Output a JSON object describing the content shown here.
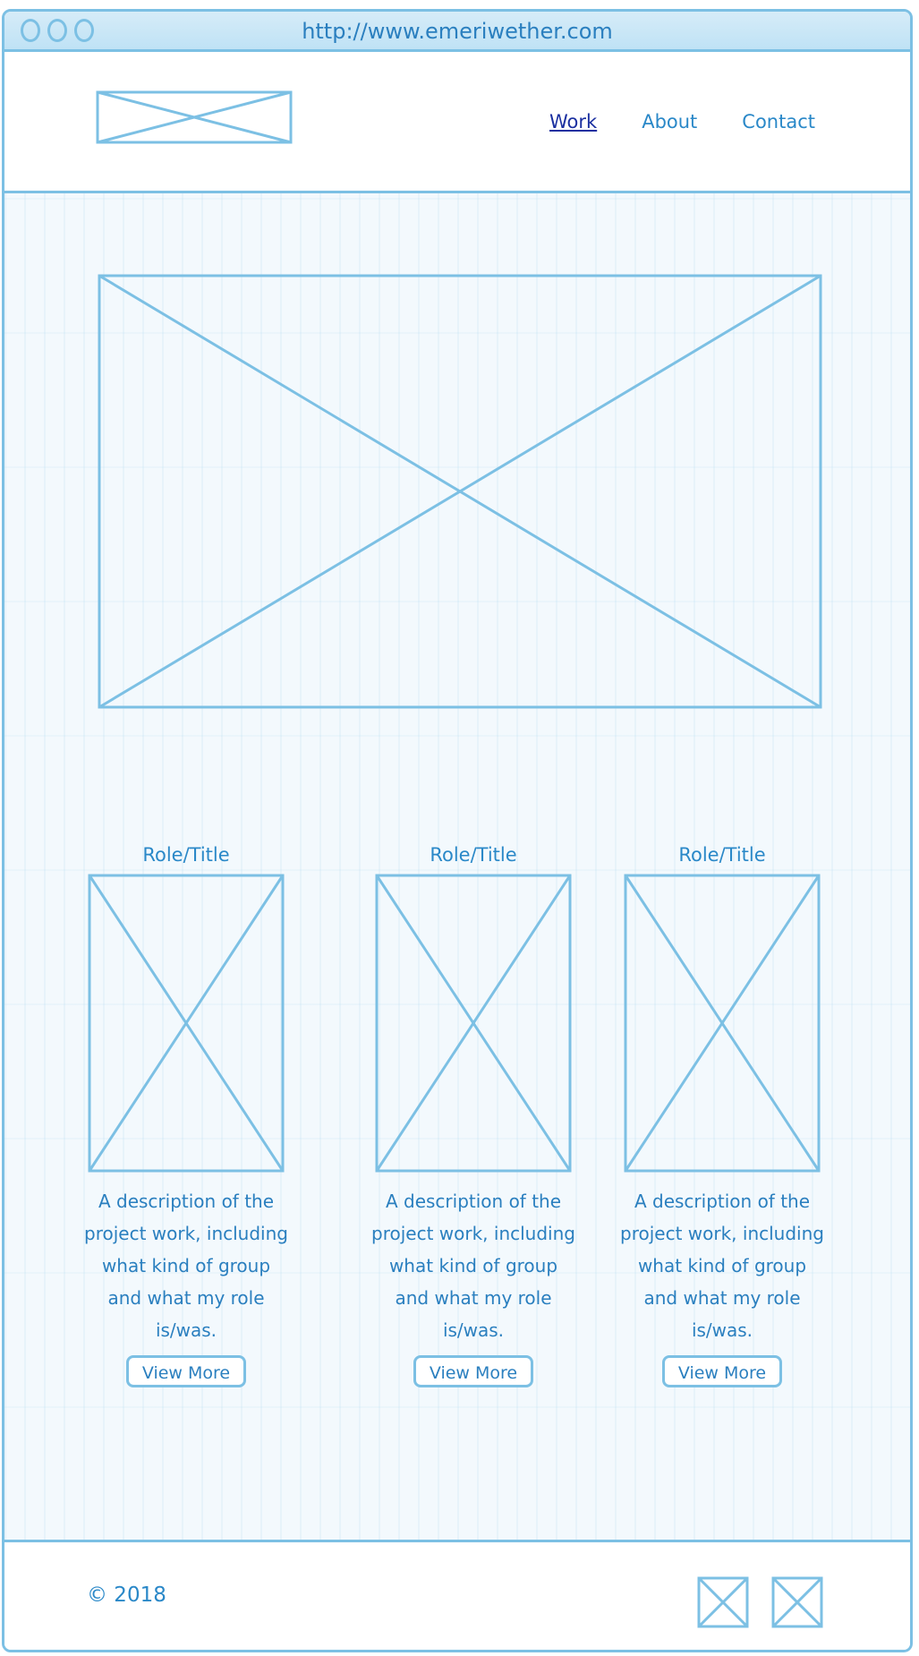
{
  "browser": {
    "url": "http://www.emeriwether.com"
  },
  "header": {
    "logo_icon": "image-placeholder-icon",
    "nav": [
      {
        "label": "Work",
        "active": true
      },
      {
        "label": "About",
        "active": false
      },
      {
        "label": "Contact",
        "active": false
      }
    ]
  },
  "hero": {
    "icon": "image-placeholder-icon"
  },
  "projects": [
    {
      "role": "Role/Title",
      "description": "A description of the project work, including what kind of group and what my role is/was.",
      "button": "View More"
    },
    {
      "role": "Role/Title",
      "description": "A description of the project work, including what kind of group and what my role is/was.",
      "button": "View More"
    },
    {
      "role": "Role/Title",
      "description": "A description of the project work, including what kind of group and what my role is/was.",
      "button": "View More"
    }
  ],
  "footer": {
    "copyright": "© 2018",
    "social_icons": [
      "social-icon-placeholder",
      "social-icon-placeholder"
    ]
  },
  "colors": {
    "wire": "#7cc0e4",
    "text": "#2a88c8",
    "active_link": "#1a2fa0",
    "background": "#f3f9fd"
  }
}
